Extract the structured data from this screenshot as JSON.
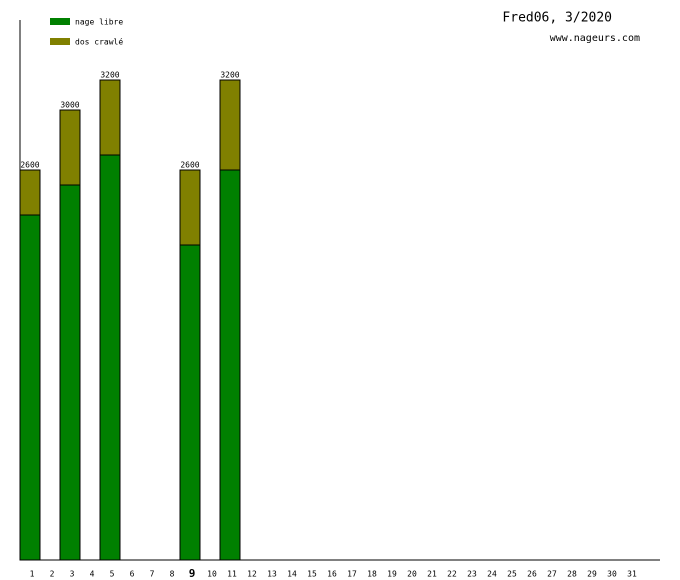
{
  "chart_data": {
    "type": "stacked_bar",
    "title": "Fred06, 3/2020",
    "subtitle": "www.nageurs.com",
    "categories": [
      "1",
      "2",
      "3",
      "4",
      "5",
      "6",
      "7",
      "8",
      "9",
      "10",
      "11",
      "12",
      "13",
      "14",
      "15",
      "16",
      "17",
      "18",
      "19",
      "20",
      "21",
      "22",
      "23",
      "24",
      "25",
      "26",
      "27",
      "28",
      "29",
      "30",
      "31"
    ],
    "highlight_index": 8,
    "series": [
      {
        "name": "nage libre",
        "color": "#008000",
        "values": [
          2300,
          null,
          2500,
          null,
          2700,
          null,
          null,
          null,
          2100,
          null,
          2600,
          null,
          null,
          null,
          null,
          null,
          null,
          null,
          null,
          null,
          null,
          null,
          null,
          null,
          null,
          null,
          null,
          null,
          null,
          null,
          null
        ]
      },
      {
        "name": "dos crawlé",
        "color": "#808000",
        "values": [
          300,
          null,
          500,
          null,
          500,
          null,
          null,
          null,
          500,
          null,
          600,
          null,
          null,
          null,
          null,
          null,
          null,
          null,
          null,
          null,
          null,
          null,
          null,
          null,
          null,
          null,
          null,
          null,
          null,
          null,
          null
        ]
      }
    ],
    "totals": [
      2600,
      null,
      3000,
      null,
      3200,
      null,
      null,
      null,
      2600,
      null,
      3200,
      null,
      null,
      null,
      null,
      null,
      null,
      null,
      null,
      null,
      null,
      null,
      null,
      null,
      null,
      null,
      null,
      null,
      null,
      null,
      null
    ],
    "ylim": [
      0,
      3600
    ]
  }
}
